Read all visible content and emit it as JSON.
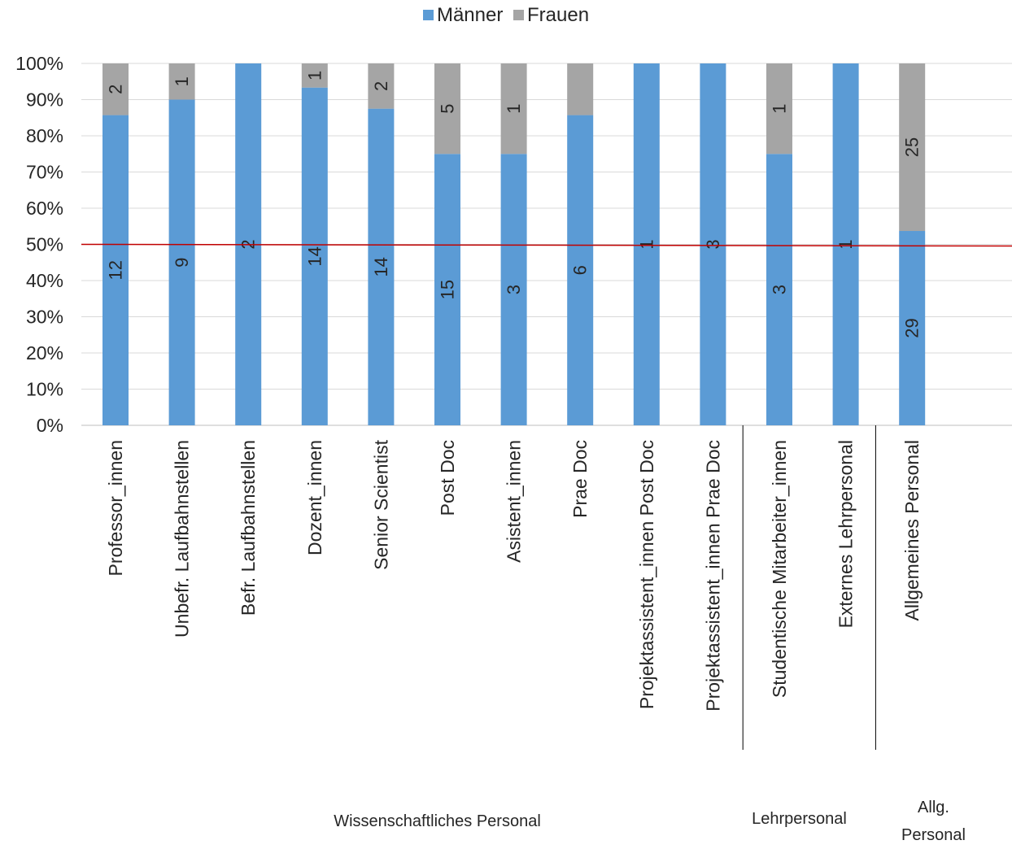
{
  "chart_data": {
    "type": "bar",
    "stacked": "percent",
    "categories": [
      "Professor_innen",
      "Unbefr. Laufbahnstellen",
      "Befr. Laufbahnstellen",
      "Dozent_innen",
      "Senior Scientist",
      "Post Doc",
      "Asistent_innen",
      "Prae Doc",
      "Projektassistent_innen Post Doc",
      "Projektassistent_innen Prae Doc",
      "Studentische Mitarbeiter_innen",
      "Externes Lehrpersonal",
      "Allgemeines Personal"
    ],
    "series": [
      {
        "name": "Männer",
        "color": "#5B9BD5",
        "values": [
          12,
          9,
          2,
          14,
          14,
          15,
          3,
          6,
          1,
          3,
          3,
          1,
          29
        ],
        "labels": [
          "12",
          "9",
          "2",
          "14",
          "14",
          "15",
          "3",
          "6",
          "1",
          "3",
          "3",
          "1",
          "29"
        ]
      },
      {
        "name": "Frauen",
        "color": "#A5A5A5",
        "values": [
          2,
          1,
          0,
          1,
          2,
          5,
          1,
          1,
          0,
          0,
          1,
          0,
          25
        ],
        "labels": [
          "2",
          "1",
          "",
          "1",
          "2",
          "5",
          "1",
          "",
          "",
          "",
          "1",
          "",
          "25"
        ]
      }
    ],
    "y_ticks": [
      "0%",
      "10%",
      "20%",
      "30%",
      "40%",
      "50%",
      "60%",
      "70%",
      "80%",
      "90%",
      "100%"
    ],
    "ylim": [
      0,
      100
    ],
    "reference_line": {
      "value": 50,
      "color": "#C00000"
    },
    "groups": [
      {
        "label_lines": [
          "Wissenschaftliches Personal"
        ],
        "from": 0,
        "to": 9
      },
      {
        "label_lines": [
          "Lehrpersonal"
        ],
        "from": 10,
        "to": 11
      },
      {
        "label_lines": [
          "Allg.",
          "Personal"
        ],
        "from": 12,
        "to": 12
      }
    ],
    "legend": "top-center",
    "grid": true
  }
}
